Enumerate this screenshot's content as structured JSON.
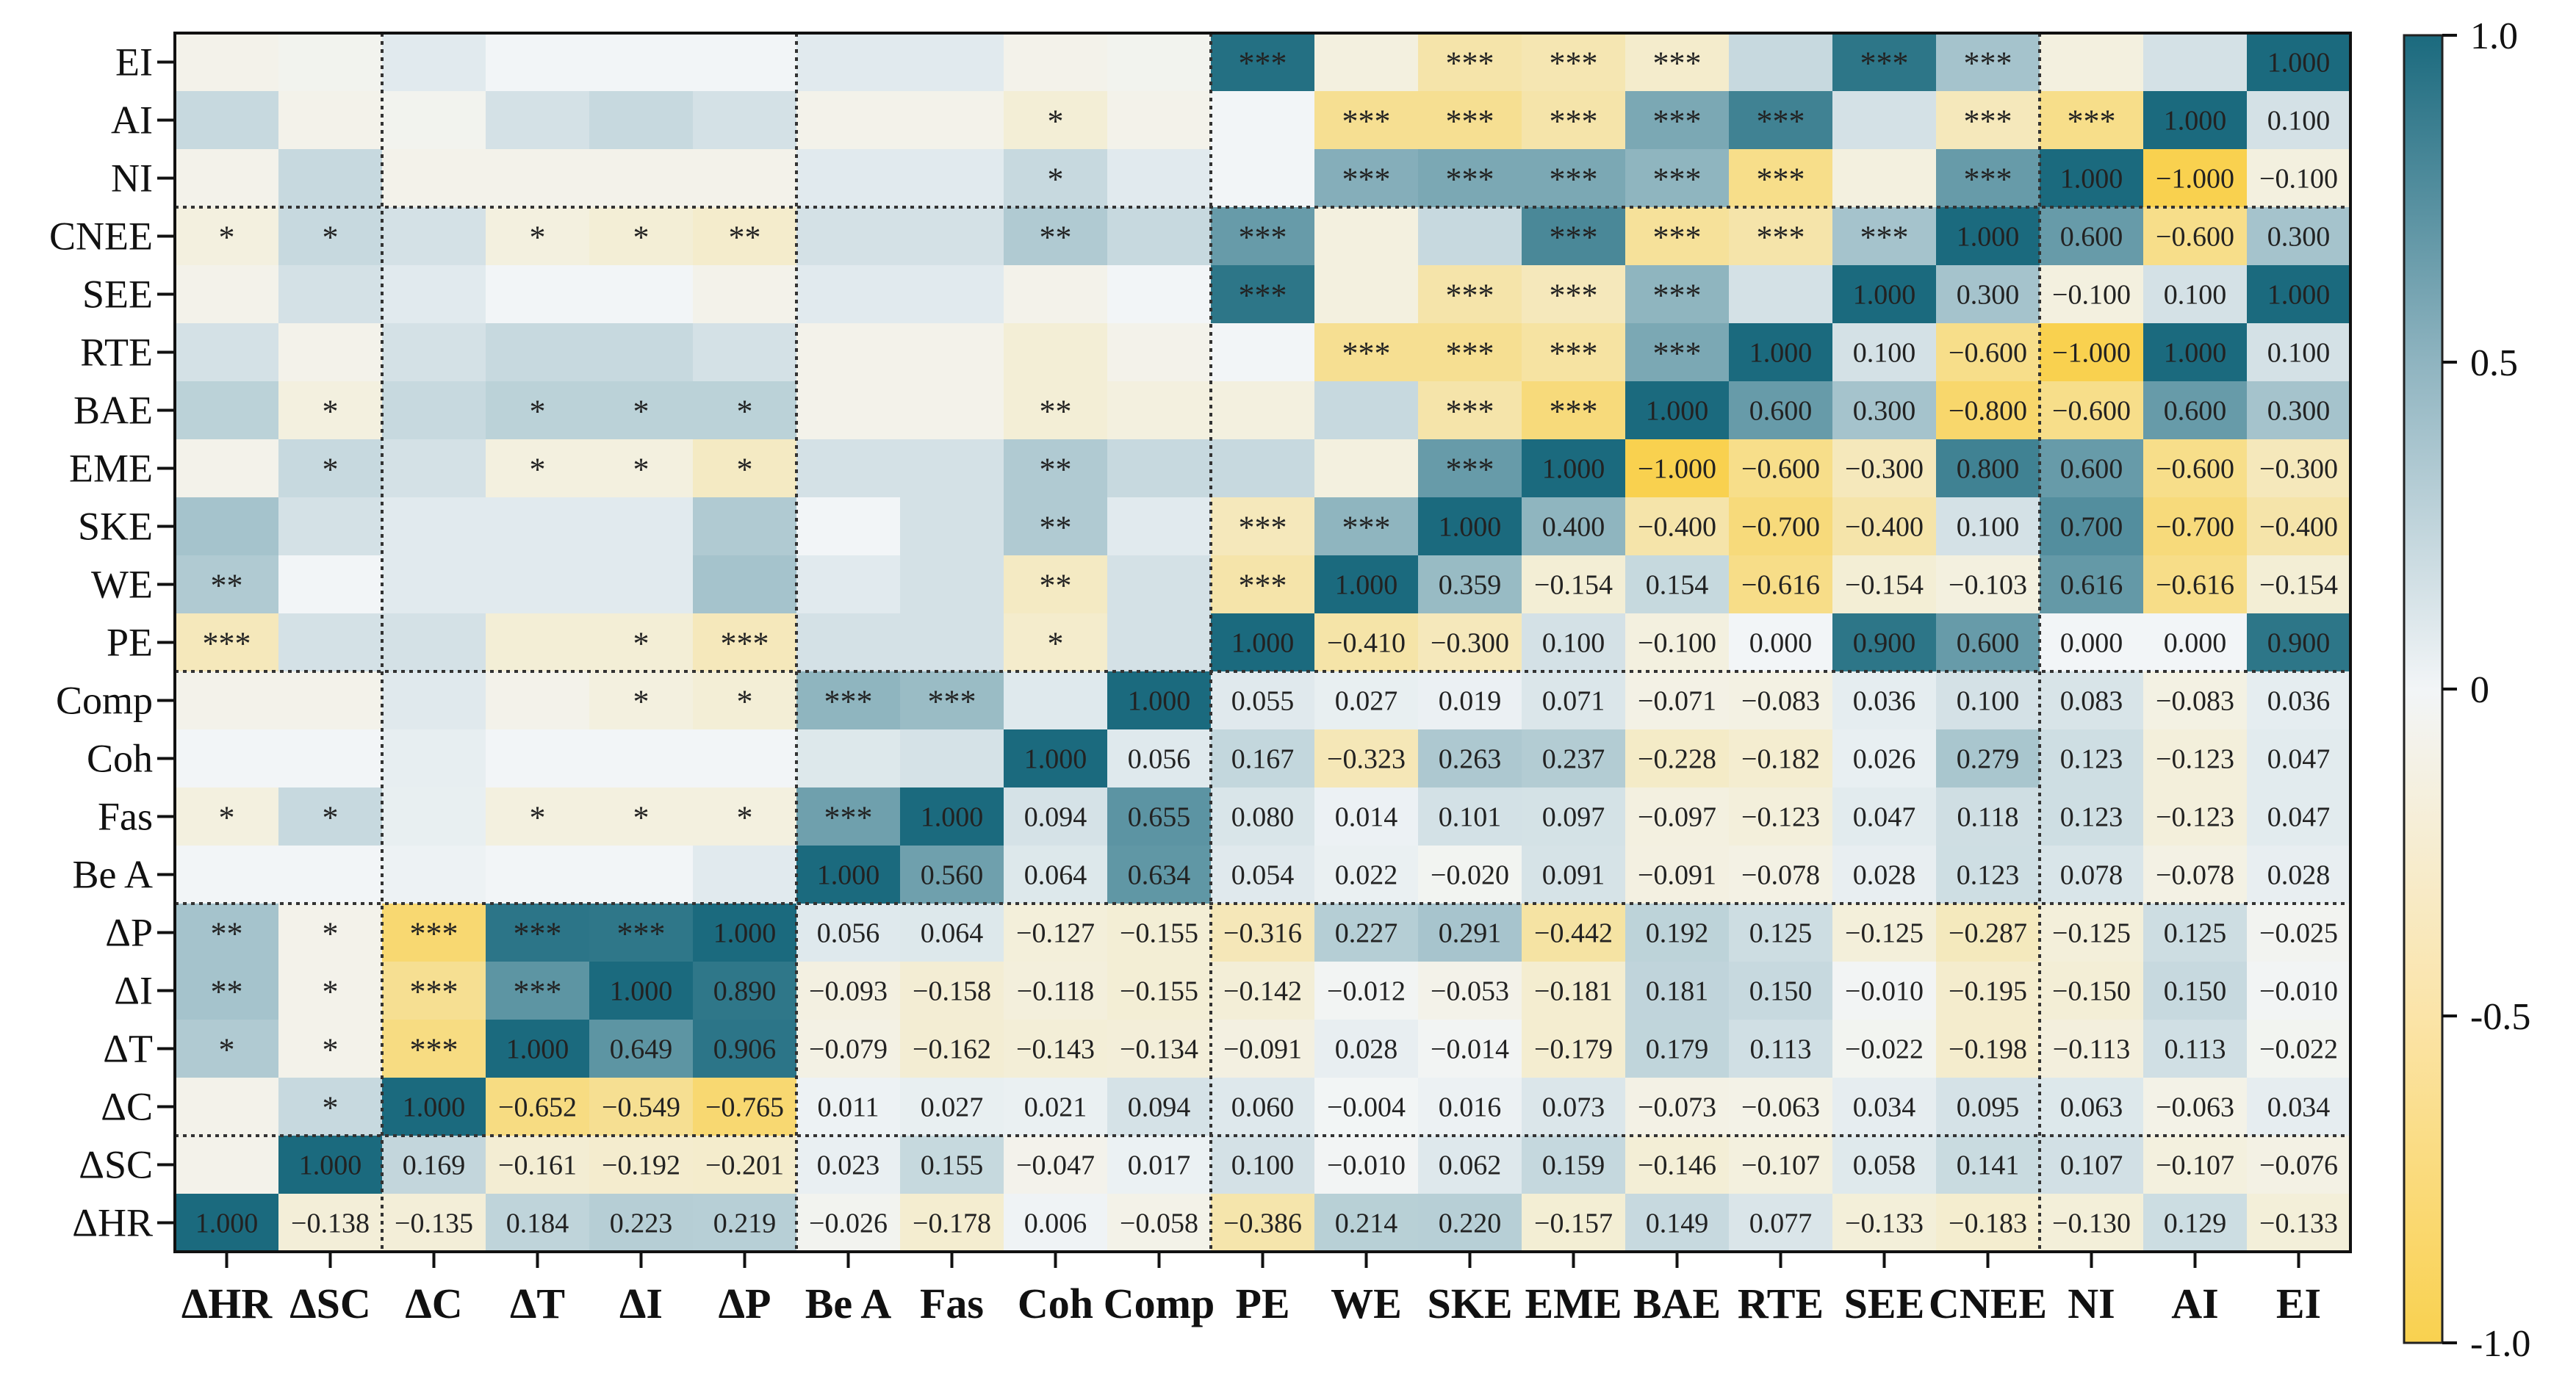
{
  "chart_data": {
    "type": "heatmap",
    "title": "",
    "color_scale": {
      "min": -1.0,
      "max": 1.0,
      "ticks": [
        "1.0",
        "0.5",
        "0",
        "-0.5",
        "-1.0"
      ],
      "tick_values": [
        1.0,
        0.5,
        0,
        -0.5,
        -1.0
      ]
    },
    "colors": {
      "positive": "#1b6a7e",
      "neutral": "#f2f5f7",
      "negative": "#f9d14f",
      "divider": "#333333"
    },
    "rows": [
      "EI",
      "AI",
      "NI",
      "CNEE",
      "SEE",
      "RTE",
      "BAE",
      "EME",
      "SKE",
      "WE",
      "PE",
      "Comp",
      "Coh",
      "Fas",
      "Be A",
      "ΔP",
      "ΔI",
      "ΔT",
      "ΔC",
      "ΔSC",
      "ΔHR"
    ],
    "columns": [
      "ΔHR",
      "ΔSC",
      "ΔC",
      "ΔT",
      "ΔI",
      "ΔP",
      "Be A",
      "Fas",
      "Coh",
      "Comp",
      "PE",
      "WE",
      "SKE",
      "EME",
      "BAE",
      "RTE",
      "SEE",
      "CNEE",
      "NI",
      "AI",
      "EI"
    ],
    "row_group_breaks_after": [
      2,
      10,
      14,
      18
    ],
    "col_group_breaks_after": [
      1,
      5,
      9,
      17
    ],
    "colors_estimated": [
      [
        -0.05,
        -0.03,
        0.05,
        0.0,
        0.0,
        0.0,
        0.05,
        0.05,
        -0.05,
        -0.03,
        0.95,
        -0.1,
        -0.4,
        -0.35,
        -0.2,
        0.15,
        0.9,
        0.3,
        -0.1,
        0.1,
        1.0
      ],
      [
        0.15,
        -0.05,
        -0.03,
        0.1,
        0.15,
        0.1,
        -0.05,
        -0.05,
        -0.15,
        -0.05,
        0.0,
        -0.55,
        -0.55,
        -0.4,
        0.5,
        0.8,
        0.1,
        -0.3,
        -0.6,
        1.0,
        0.1
      ],
      [
        -0.05,
        0.15,
        -0.05,
        -0.05,
        -0.05,
        -0.05,
        0.05,
        0.05,
        0.15,
        0.05,
        0.0,
        0.45,
        0.5,
        0.5,
        0.4,
        -0.6,
        -0.1,
        0.6,
        1.0,
        -1.0,
        -0.1
      ],
      [
        -0.1,
        0.15,
        0.1,
        -0.1,
        -0.15,
        -0.2,
        0.1,
        0.1,
        0.25,
        0.15,
        0.6,
        -0.1,
        0.15,
        0.75,
        -0.5,
        -0.4,
        0.3,
        1.0,
        0.6,
        -0.6,
        0.3
      ],
      [
        -0.05,
        0.1,
        0.05,
        0.0,
        0.0,
        -0.05,
        0.05,
        0.05,
        -0.05,
        0.0,
        0.9,
        -0.1,
        -0.4,
        -0.3,
        0.4,
        0.1,
        1.0,
        0.3,
        -0.1,
        0.1,
        1.0
      ],
      [
        0.1,
        -0.05,
        0.1,
        0.15,
        0.15,
        0.1,
        -0.05,
        -0.05,
        -0.15,
        -0.05,
        0.0,
        -0.55,
        -0.55,
        -0.45,
        0.5,
        1.0,
        0.1,
        -0.6,
        -1.0,
        1.0,
        0.1
      ],
      [
        0.2,
        -0.1,
        0.15,
        0.2,
        0.2,
        0.2,
        -0.05,
        -0.05,
        -0.15,
        -0.1,
        -0.1,
        0.15,
        -0.4,
        -0.7,
        1.0,
        0.6,
        0.3,
        -0.8,
        -0.6,
        0.6,
        0.3
      ],
      [
        -0.05,
        0.15,
        0.1,
        -0.1,
        -0.1,
        -0.25,
        0.1,
        0.1,
        0.25,
        0.15,
        0.15,
        -0.1,
        0.6,
        1.0,
        -1.0,
        -0.6,
        -0.3,
        0.8,
        0.6,
        -0.6,
        -0.3
      ],
      [
        0.3,
        0.1,
        0.05,
        0.05,
        0.05,
        0.25,
        0.0,
        0.1,
        0.25,
        0.05,
        -0.3,
        0.4,
        1.0,
        0.4,
        -0.4,
        -0.7,
        -0.4,
        0.1,
        0.7,
        -0.7,
        -0.4
      ],
      [
        0.25,
        0.0,
        0.05,
        0.05,
        0.05,
        0.3,
        0.05,
        0.1,
        -0.25,
        0.1,
        -0.4,
        1.0,
        0.359,
        -0.154,
        0.154,
        -0.616,
        -0.154,
        -0.103,
        0.616,
        -0.616,
        -0.154
      ],
      [
        -0.3,
        0.1,
        0.1,
        -0.15,
        -0.15,
        -0.3,
        0.1,
        0.1,
        -0.2,
        0.1,
        1.0,
        -0.41,
        -0.3,
        0.1,
        -0.1,
        0.0,
        0.9,
        0.6,
        0.0,
        0.0,
        0.9
      ],
      [
        -0.05,
        -0.05,
        0.055,
        -0.05,
        -0.1,
        -0.15,
        0.4,
        0.35,
        0.056,
        1.0,
        0.055,
        0.027,
        0.019,
        0.071,
        -0.071,
        -0.083,
        0.036,
        0.1,
        0.083,
        -0.083,
        0.036
      ],
      [
        0.0,
        0.0,
        0.03,
        0.0,
        0.0,
        0.0,
        0.064,
        0.094,
        1.0,
        0.056,
        0.167,
        -0.323,
        0.263,
        0.237,
        -0.228,
        -0.182,
        0.026,
        0.279,
        0.123,
        -0.123,
        0.047
      ],
      [
        -0.1,
        0.15,
        0.027,
        -0.1,
        -0.1,
        -0.1,
        0.56,
        1.0,
        0.094,
        0.655,
        0.08,
        0.014,
        0.101,
        0.097,
        -0.097,
        -0.123,
        0.047,
        0.118,
        0.123,
        -0.123,
        0.047
      ],
      [
        0.0,
        0.0,
        0.011,
        0.0,
        0.0,
        0.05,
        1.0,
        0.56,
        0.064,
        0.634,
        0.054,
        0.022,
        -0.02,
        0.091,
        -0.091,
        -0.078,
        0.028,
        0.123,
        0.078,
        -0.078,
        0.028
      ],
      [
        0.3,
        -0.05,
        -0.765,
        0.906,
        0.89,
        1.0,
        0.056,
        0.064,
        -0.127,
        -0.155,
        -0.316,
        0.227,
        0.291,
        -0.442,
        0.192,
        0.125,
        -0.125,
        -0.287,
        -0.125,
        0.125,
        -0.025
      ],
      [
        0.3,
        -0.05,
        -0.549,
        0.649,
        1.0,
        0.89,
        -0.093,
        -0.158,
        -0.118,
        -0.155,
        -0.142,
        -0.012,
        -0.053,
        -0.181,
        0.181,
        0.15,
        -0.01,
        -0.195,
        -0.15,
        0.15,
        -0.01
      ],
      [
        0.25,
        -0.05,
        -0.652,
        1.0,
        0.649,
        0.906,
        -0.079,
        -0.162,
        -0.143,
        -0.134,
        -0.091,
        0.028,
        -0.014,
        -0.179,
        0.179,
        0.113,
        -0.022,
        -0.198,
        -0.113,
        0.113,
        -0.022
      ],
      [
        -0.05,
        0.15,
        1.0,
        -0.652,
        -0.549,
        -0.765,
        0.011,
        0.027,
        0.021,
        0.094,
        0.06,
        -0.004,
        0.016,
        0.073,
        -0.073,
        -0.063,
        0.034,
        0.095,
        0.063,
        -0.063,
        0.034
      ],
      [
        -0.05,
        1.0,
        0.169,
        -0.161,
        -0.192,
        -0.201,
        0.023,
        0.155,
        -0.047,
        0.017,
        0.1,
        -0.01,
        0.062,
        0.159,
        -0.146,
        -0.107,
        0.058,
        0.141,
        0.107,
        -0.107,
        -0.076
      ],
      [
        1.0,
        -0.138,
        -0.135,
        0.184,
        0.223,
        0.219,
        -0.026,
        -0.178,
        0.006,
        -0.058,
        -0.386,
        0.214,
        0.22,
        -0.157,
        0.149,
        0.077,
        -0.133,
        -0.183,
        -0.13,
        0.129,
        -0.133
      ]
    ],
    "cell_labels": [
      [
        "",
        "",
        "",
        "",
        "",
        "",
        "",
        "",
        "",
        "",
        "***",
        "",
        "***",
        "***",
        "***",
        "",
        "***",
        "***",
        "",
        "",
        "1.000"
      ],
      [
        "",
        "",
        "",
        "",
        "",
        "",
        "",
        "",
        "*",
        "",
        "",
        "***",
        "***",
        "***",
        "***",
        "***",
        "",
        "***",
        "***",
        "1.000",
        "0.100"
      ],
      [
        "",
        "",
        "",
        "",
        "",
        "",
        "",
        "",
        "*",
        "",
        "",
        "***",
        "***",
        "***",
        "***",
        "***",
        "",
        "***",
        "1.000",
        "-1.000",
        "-0.100"
      ],
      [
        "*",
        "*",
        "",
        "*",
        "*",
        "**",
        "",
        "",
        "**",
        "",
        "***",
        "",
        "",
        "***",
        "***",
        "***",
        "***",
        "1.000",
        "0.600",
        "-0.600",
        "0.300"
      ],
      [
        "",
        "",
        "",
        "",
        "",
        "",
        "",
        "",
        "",
        "",
        "***",
        "",
        "***",
        "***",
        "***",
        "",
        "1.000",
        "0.300",
        "-0.100",
        "0.100",
        "1.000"
      ],
      [
        "",
        "",
        "",
        "",
        "",
        "",
        "",
        "",
        "",
        "",
        "",
        "***",
        "***",
        "***",
        "***",
        "1.000",
        "0.100",
        "-0.600",
        "-1.000",
        "1.000",
        "0.100"
      ],
      [
        "",
        "*",
        "",
        "*",
        "*",
        "*",
        "",
        "",
        "**",
        "",
        "",
        "",
        "***",
        "***",
        "1.000",
        "0.600",
        "0.300",
        "-0.800",
        "-0.600",
        "0.600",
        "0.300"
      ],
      [
        "",
        "*",
        "",
        "*",
        "*",
        "*",
        "",
        "",
        "**",
        "",
        "",
        "",
        "***",
        "1.000",
        "-1.000",
        "-0.600",
        "-0.300",
        "0.800",
        "0.600",
        "-0.600",
        "-0.300"
      ],
      [
        "",
        "",
        "",
        "",
        "",
        "",
        "",
        "",
        "**",
        "",
        "***",
        "***",
        "1.000",
        "0.400",
        "-0.400",
        "-0.700",
        "-0.400",
        "0.100",
        "0.700",
        "-0.700",
        "-0.400"
      ],
      [
        "**",
        "",
        "",
        "",
        "",
        "",
        "",
        "",
        "**",
        "",
        "***",
        "1.000",
        "0.359",
        "-0.154",
        "0.154",
        "-0.616",
        "-0.154",
        "-0.103",
        "0.616",
        "-0.616",
        "-0.154"
      ],
      [
        "***",
        "",
        "",
        "",
        "*",
        "***",
        "",
        "",
        "*",
        "",
        "1.000",
        "-0.410",
        "-0.300",
        "0.100",
        "-0.100",
        "0.000",
        "0.900",
        "0.600",
        "0.000",
        "0.000",
        "0.900"
      ],
      [
        "",
        "",
        "",
        "",
        "*",
        "*",
        "***",
        "***",
        "",
        "1.000",
        "0.055",
        "0.027",
        "0.019",
        "0.071",
        "-0.071",
        "-0.083",
        "0.036",
        "0.100",
        "0.083",
        "-0.083",
        "0.036"
      ],
      [
        "",
        "",
        "",
        "",
        "",
        "",
        "",
        "",
        "1.000",
        "0.056",
        "0.167",
        "-0.323",
        "0.263",
        "0.237",
        "-0.228",
        "-0.182",
        "0.026",
        "0.279",
        "0.123",
        "-0.123",
        "0.047"
      ],
      [
        "*",
        "*",
        "",
        "*",
        "*",
        "*",
        "***",
        "1.000",
        "0.094",
        "0.655",
        "0.080",
        "0.014",
        "0.101",
        "0.097",
        "-0.097",
        "-0.123",
        "0.047",
        "0.118",
        "0.123",
        "-0.123",
        "0.047"
      ],
      [
        "",
        "",
        "",
        "",
        "",
        "",
        "1.000",
        "0.560",
        "0.064",
        "0.634",
        "0.054",
        "0.022",
        "-0.020",
        "0.091",
        "-0.091",
        "-0.078",
        "0.028",
        "0.123",
        "0.078",
        "-0.078",
        "0.028"
      ],
      [
        "**",
        "*",
        "***",
        "***",
        "***",
        "1.000",
        "0.056",
        "0.064",
        "-0.127",
        "-0.155",
        "-0.316",
        "0.227",
        "0.291",
        "-0.442",
        "0.192",
        "0.125",
        "-0.125",
        "-0.287",
        "-0.125",
        "0.125",
        "-0.025"
      ],
      [
        "**",
        "*",
        "***",
        "***",
        "1.000",
        "0.890",
        "-0.093",
        "-0.158",
        "-0.118",
        "-0.155",
        "-0.142",
        "-0.012",
        "-0.053",
        "-0.181",
        "0.181",
        "0.150",
        "-0.010",
        "-0.195",
        "-0.150",
        "0.150",
        "-0.010"
      ],
      [
        "*",
        "*",
        "***",
        "1.000",
        "0.649",
        "0.906",
        "-0.079",
        "-0.162",
        "-0.143",
        "-0.134",
        "-0.091",
        "0.028",
        "-0.014",
        "-0.179",
        "0.179",
        "0.113",
        "-0.022",
        "-0.198",
        "-0.113",
        "0.113",
        "-0.022"
      ],
      [
        "",
        "*",
        "1.000",
        "-0.652",
        "-0.549",
        "-0.765",
        "0.011",
        "0.027",
        "0.021",
        "0.094",
        "0.060",
        "-0.004",
        "0.016",
        "0.073",
        "-0.073",
        "-0.063",
        "0.034",
        "0.095",
        "0.063",
        "-0.063",
        "0.034"
      ],
      [
        "",
        "1.000",
        "0.169",
        "-0.161",
        "-0.192",
        "-0.201",
        "0.023",
        "0.155",
        "-0.047",
        "0.017",
        "0.100",
        "-0.010",
        "0.062",
        "0.159",
        "-0.146",
        "-0.107",
        "0.058",
        "0.141",
        "0.107",
        "-0.107",
        "-0.076"
      ],
      [
        "1.000",
        "-0.138",
        "-0.135",
        "0.184",
        "0.223",
        "0.219",
        "-0.026",
        "-0.178",
        "0.006",
        "-0.058",
        "-0.386",
        "0.214",
        "0.220",
        "-0.157",
        "0.149",
        "0.077",
        "-0.133",
        "-0.183",
        "-0.130",
        "0.129",
        "-0.133"
      ]
    ]
  }
}
